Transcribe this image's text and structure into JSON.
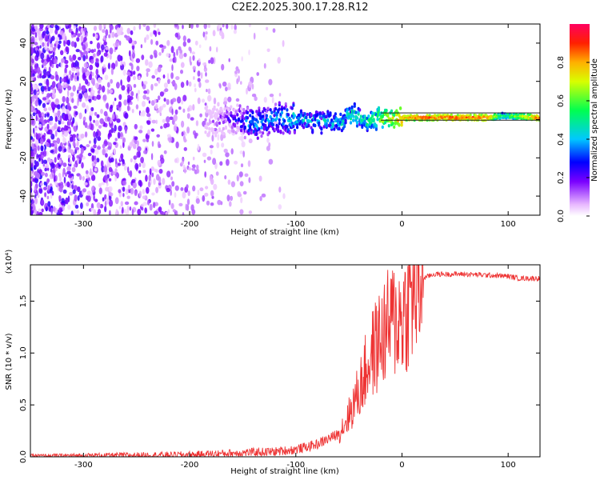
{
  "title": "C2E2.2025.300.17.28.R12",
  "chart_data": [
    {
      "type": "heatmap",
      "xlabel": "Height of straight line (km)",
      "ylabel": "Frequency (Hz)",
      "xlim": [
        -350,
        130
      ],
      "ylim": [
        -50,
        50
      ],
      "xticks": [
        -300,
        -200,
        -100,
        0,
        100
      ],
      "yticks": [
        -40,
        -20,
        0,
        20,
        40
      ],
      "colorbar": {
        "label": "Normalized spectral amplitude",
        "range": [
          0,
          1
        ],
        "ticks": [
          "0.0",
          "0.2",
          "0.4",
          "0.6",
          "0.8"
        ],
        "tick_values": [
          0,
          0.2,
          0.4,
          0.6,
          0.8
        ]
      },
      "ridge": {
        "x": [
          -180,
          -160,
          -140,
          -120,
          -100,
          -80,
          -60,
          -45,
          -35,
          -20,
          0,
          20,
          40,
          60,
          80,
          95,
          130
        ],
        "frequency": [
          0,
          1,
          -2,
          0,
          1,
          -2,
          -1,
          3,
          -1,
          1,
          1,
          1,
          1,
          1,
          1,
          2,
          1
        ],
        "amplitude": [
          0.15,
          0.3,
          0.45,
          0.45,
          0.5,
          0.5,
          0.5,
          0.55,
          0.55,
          0.7,
          0.9,
          0.95,
          0.95,
          0.95,
          0.95,
          0.6,
          0.95
        ]
      },
      "noise_region": {
        "x": [
          -350,
          -130
        ],
        "amplitude_range": [
          0.0,
          0.2
        ]
      }
    },
    {
      "type": "line",
      "xlabel": "Height of straight line (km)",
      "ylabel": "SNR (10 * v/v)",
      "y_multiplier": "(x10⁴)",
      "xlim": [
        -350,
        130
      ],
      "ylim": [
        0,
        1.85
      ],
      "xticks": [
        -300,
        -200,
        -100,
        0,
        100
      ],
      "yticks": [
        "0.0",
        "0.5",
        "1.0",
        "1.5"
      ],
      "ytick_values": [
        0,
        0.5,
        1.0,
        1.5
      ],
      "color": "#ee3333",
      "series": [
        {
          "x": [
            -350,
            -200,
            -150,
            -120,
            -100,
            -80,
            -60,
            -50,
            -40,
            -30,
            -20,
            -10,
            0,
            10,
            20,
            30,
            40,
            60,
            80,
            100,
            110,
            130
          ],
          "y": [
            0.01,
            0.02,
            0.04,
            0.05,
            0.07,
            0.12,
            0.22,
            0.4,
            0.65,
            0.95,
            1.15,
            1.3,
            1.35,
            1.55,
            1.72,
            1.76,
            1.76,
            1.76,
            1.75,
            1.74,
            1.72,
            1.72
          ]
        }
      ]
    }
  ]
}
